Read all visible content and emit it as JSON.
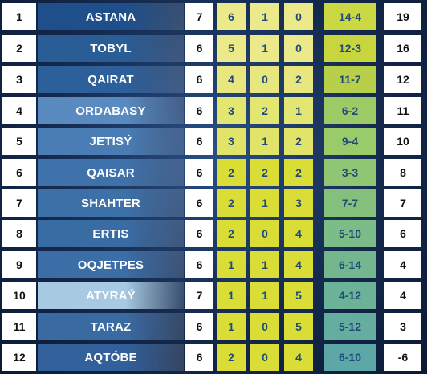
{
  "rows": [
    {
      "pos": "1",
      "team": "ASTANA",
      "played": "7",
      "w": "6",
      "d": "1",
      "l": "0",
      "goals": "14-4",
      "pts": "19",
      "team_color": "#1f4f8a",
      "goals_color": "#c9d843",
      "wdl_color": "#ece98a"
    },
    {
      "pos": "2",
      "team": "TOBYL",
      "played": "6",
      "w": "5",
      "d": "1",
      "l": "0",
      "goals": "12-3",
      "pts": "16",
      "team_color": "#2a5c95",
      "goals_color": "#c8d63e",
      "wdl_color": "#ece98a"
    },
    {
      "pos": "3",
      "team": "QAIRAT",
      "played": "6",
      "w": "4",
      "d": "0",
      "l": "2",
      "goals": "11-7",
      "pts": "12",
      "team_color": "#2d5f9a",
      "goals_color": "#b8cf4a",
      "wdl_color": "#e7e67f"
    },
    {
      "pos": "4",
      "team": "ORDABASY",
      "played": "6",
      "w": "3",
      "d": "2",
      "l": "1",
      "goals": "6-2",
      "pts": "11",
      "team_color": "#5a8bc0",
      "goals_color": "#9ccb66",
      "wdl_color": "#e3e670"
    },
    {
      "pos": "5",
      "team": "JETISÝ",
      "played": "6",
      "w": "3",
      "d": "1",
      "l": "2",
      "goals": "9-4",
      "pts": "10",
      "team_color": "#4a7db4",
      "goals_color": "#9acb6a",
      "wdl_color": "#e2e46a"
    },
    {
      "pos": "6",
      "team": "QAISAR",
      "played": "6",
      "w": "2",
      "d": "2",
      "l": "2",
      "goals": "3-3",
      "pts": "8",
      "team_color": "#3f72aa",
      "goals_color": "#8fc573",
      "wdl_color": "#d9dd36"
    },
    {
      "pos": "7",
      "team": "SHAHTER",
      "played": "6",
      "w": "2",
      "d": "1",
      "l": "3",
      "goals": "7-7",
      "pts": "7",
      "team_color": "#3e70a8",
      "goals_color": "#84c07c",
      "wdl_color": "#d9dd36"
    },
    {
      "pos": "8",
      "team": "ERTIS",
      "played": "6",
      "w": "2",
      "d": "0",
      "l": "4",
      "goals": "5-10",
      "pts": "6",
      "team_color": "#3a6ca4",
      "goals_color": "#7cbc88",
      "wdl_color": "#d9dd36"
    },
    {
      "pos": "9",
      "team": "OQJETPES",
      "played": "6",
      "w": "1",
      "d": "1",
      "l": "4",
      "goals": "6-14",
      "pts": "4",
      "team_color": "#3b6da6",
      "goals_color": "#74b78e",
      "wdl_color": "#d9dd36"
    },
    {
      "pos": "10",
      "team": "ATYRAÝ",
      "played": "7",
      "w": "1",
      "d": "1",
      "l": "5",
      "goals": "4-12",
      "pts": "4",
      "team_color": "#a7c9e2",
      "goals_color": "#6bb299",
      "wdl_color": "#d9dd36"
    },
    {
      "pos": "11",
      "team": "TARAZ",
      "played": "6",
      "w": "1",
      "d": "0",
      "l": "5",
      "goals": "5-12",
      "pts": "3",
      "team_color": "#3a6aa2",
      "goals_color": "#65ad9f",
      "wdl_color": "#d9dd36"
    },
    {
      "pos": "12",
      "team": "AQTÓBE",
      "played": "6",
      "w": "2",
      "d": "0",
      "l": "4",
      "goals": "6-10",
      "pts": "-6",
      "team_color": "#31609a",
      "goals_color": "#5da8a6",
      "wdl_color": "#d9dd36"
    }
  ]
}
